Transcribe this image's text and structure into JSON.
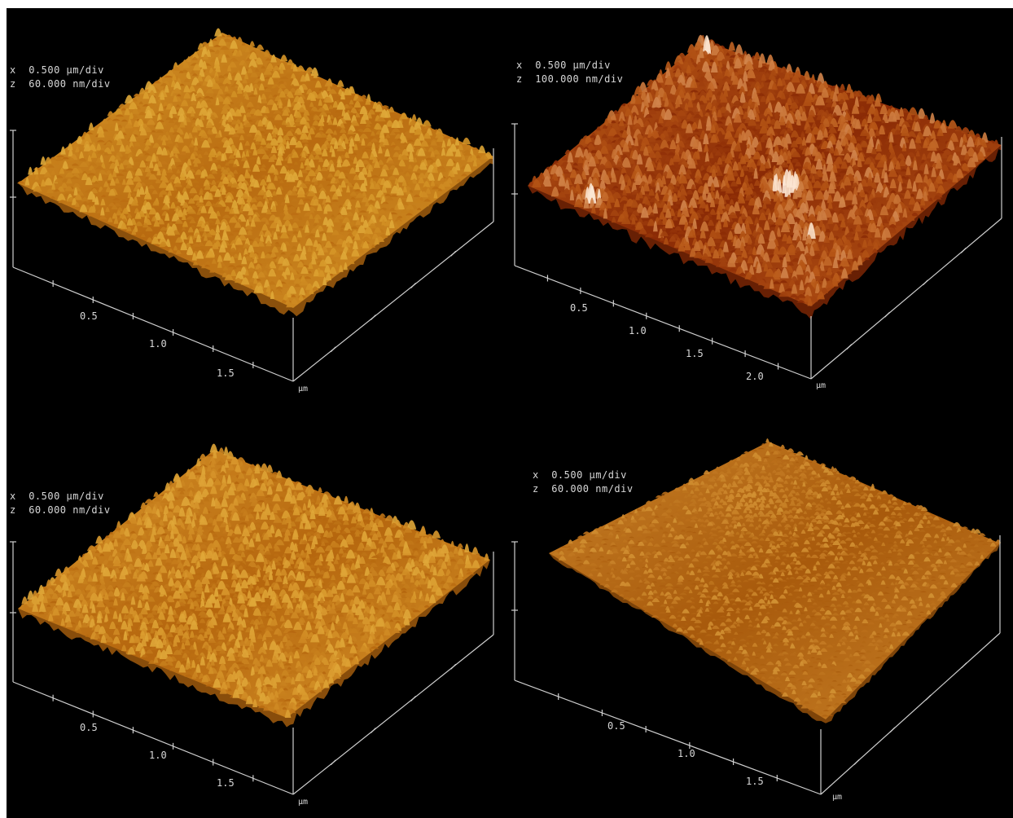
{
  "panels": [
    {
      "id": "top-left",
      "scale": {
        "x_label": "x",
        "x_value": "0.500 µm/div",
        "z_label": "z",
        "z_value": "60.000 nm/div"
      },
      "x_ticks": [
        "0.5",
        "1.0",
        "1.5"
      ],
      "unit": "µm",
      "colors": {
        "base": "#b86a10",
        "mid": "#d89a2a",
        "high": "#f2d060"
      }
    },
    {
      "id": "top-right",
      "scale": {
        "x_label": "x",
        "x_value": "0.500 µm/div",
        "z_label": "z",
        "z_value": "100.000 nm/div"
      },
      "x_ticks": [
        "0.5",
        "1.0",
        "1.5",
        "2.0"
      ],
      "unit": "µm",
      "colors": {
        "base": "#8a2a05",
        "mid": "#c0601a",
        "high": "#fbe0c8"
      }
    },
    {
      "id": "bottom-left",
      "scale": {
        "x_label": "x",
        "x_value": "0.500 µm/div",
        "z_label": "z",
        "z_value": "60.000 nm/div"
      },
      "x_ticks": [
        "0.5",
        "1.0",
        "1.5"
      ],
      "unit": "µm",
      "colors": {
        "base": "#b5660e",
        "mid": "#d9982c",
        "high": "#f0cc58"
      }
    },
    {
      "id": "bottom-right",
      "scale": {
        "x_label": "x",
        "x_value": "0.500 µm/div",
        "z_label": "z",
        "z_value": "60.000 nm/div"
      },
      "x_ticks": [
        "0.5",
        "1.0",
        "1.5"
      ],
      "unit": "µm",
      "colors": {
        "base": "#a85a0c",
        "mid": "#c98228",
        "high": "#e8b850"
      }
    }
  ]
}
